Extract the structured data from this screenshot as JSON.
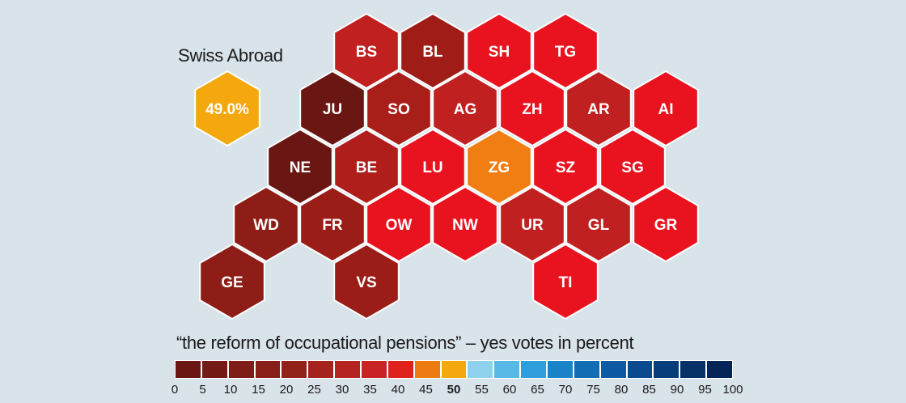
{
  "swiss_abroad": {
    "title": "Swiss Abroad",
    "value_label": "49.0%",
    "yes_percent": 49.0
  },
  "legend": {
    "title": "“the reform of occupational pensions” – yes votes in percent",
    "ticks": [
      "0",
      "5",
      "10",
      "15",
      "20",
      "25",
      "30",
      "35",
      "40",
      "45",
      "50",
      "55",
      "60",
      "65",
      "70",
      "75",
      "80",
      "85",
      "90",
      "95",
      "100"
    ],
    "bold_tick": "50",
    "colors": [
      "#6a1612",
      "#761a15",
      "#7f1c17",
      "#881f18",
      "#92211a",
      "#a4231c",
      "#b52420",
      "#c82424",
      "#e0221f",
      "#ee7a12",
      "#f5a70e",
      "#8ed1ef",
      "#58b8e6",
      "#2f9fdb",
      "#1b84c8",
      "#136db4",
      "#0e5aa2",
      "#0b4a8e",
      "#083d7b",
      "#063068",
      "#052558"
    ]
  },
  "cantons": [
    {
      "code": "BS",
      "color": "#c0201f"
    },
    {
      "code": "BL",
      "color": "#9f1c17"
    },
    {
      "code": "SH",
      "color": "#e8131e"
    },
    {
      "code": "TG",
      "color": "#e8131e"
    },
    {
      "code": "JU",
      "color": "#6a1612"
    },
    {
      "code": "SO",
      "color": "#a81f1a"
    },
    {
      "code": "AG",
      "color": "#c0201f"
    },
    {
      "code": "ZH",
      "color": "#e8131e"
    },
    {
      "code": "AR",
      "color": "#c0201f"
    },
    {
      "code": "AI",
      "color": "#e8131e"
    },
    {
      "code": "NE",
      "color": "#6a1612"
    },
    {
      "code": "BE",
      "color": "#b01e1c"
    },
    {
      "code": "LU",
      "color": "#e8131e"
    },
    {
      "code": "ZG",
      "color": "#f07e13"
    },
    {
      "code": "SZ",
      "color": "#e8131e"
    },
    {
      "code": "SG",
      "color": "#e8131e"
    },
    {
      "code": "WD",
      "color": "#8e1d17"
    },
    {
      "code": "FR",
      "color": "#9a1d18"
    },
    {
      "code": "OW",
      "color": "#e8131e"
    },
    {
      "code": "NW",
      "color": "#e8131e"
    },
    {
      "code": "UR",
      "color": "#c0201f"
    },
    {
      "code": "GL",
      "color": "#c0201f"
    },
    {
      "code": "GR",
      "color": "#e8131e"
    },
    {
      "code": "GE",
      "color": "#8e1d17"
    },
    {
      "code": "VS",
      "color": "#9a1d18"
    },
    {
      "code": "TI",
      "color": "#e8131e"
    }
  ]
}
